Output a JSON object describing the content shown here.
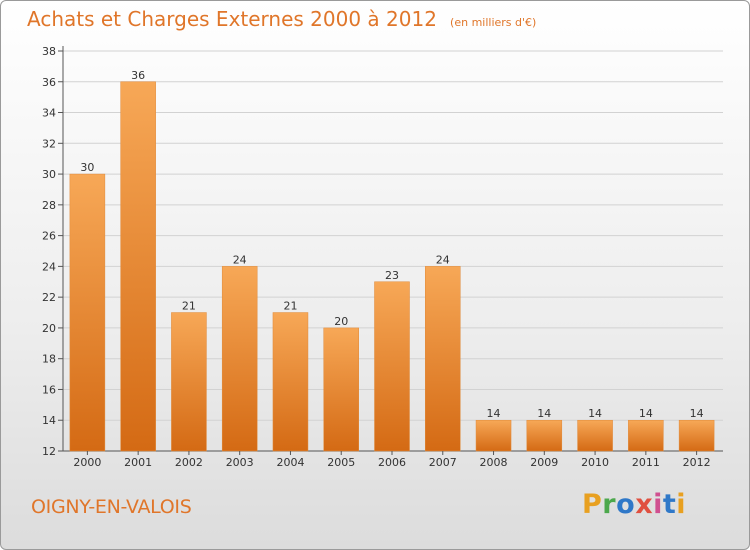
{
  "title": "Achats et Charges Externes 2000 à 2012",
  "unit": "(en milliers d'€)",
  "commune": "OIGNY-EN-VALOIS",
  "logo": {
    "letters": [
      "P",
      "r",
      "o",
      "x",
      "i",
      "t",
      "i"
    ],
    "colors": [
      "#e8a020",
      "#4ca84c",
      "#2f78c8",
      "#e05040",
      "#d05090",
      "#2f78c8",
      "#e8a020"
    ]
  },
  "colors": {
    "accent": "#e0762a",
    "bar_top": "#f7a857",
    "bar_bottom": "#d46a14"
  },
  "chart_data": {
    "type": "bar",
    "title": "Achats et Charges Externes 2000 à 2012",
    "categories": [
      "2000",
      "2001",
      "2002",
      "2003",
      "2004",
      "2005",
      "2006",
      "2007",
      "2008",
      "2009",
      "2010",
      "2011",
      "2012"
    ],
    "values": [
      30,
      36,
      21,
      24,
      21,
      20,
      23,
      24,
      14,
      14,
      14,
      14,
      14
    ],
    "data_labels": [
      "30",
      "36",
      "21",
      "24",
      "21",
      "20",
      "23",
      "24",
      "14",
      "14",
      "14",
      "14",
      "14"
    ],
    "yticks": [
      "12",
      "14",
      "16",
      "18",
      "20",
      "22",
      "24",
      "26",
      "28",
      "30",
      "32",
      "34",
      "36",
      "38"
    ],
    "ylim": [
      12,
      38
    ],
    "grid": true,
    "legend": "none"
  }
}
